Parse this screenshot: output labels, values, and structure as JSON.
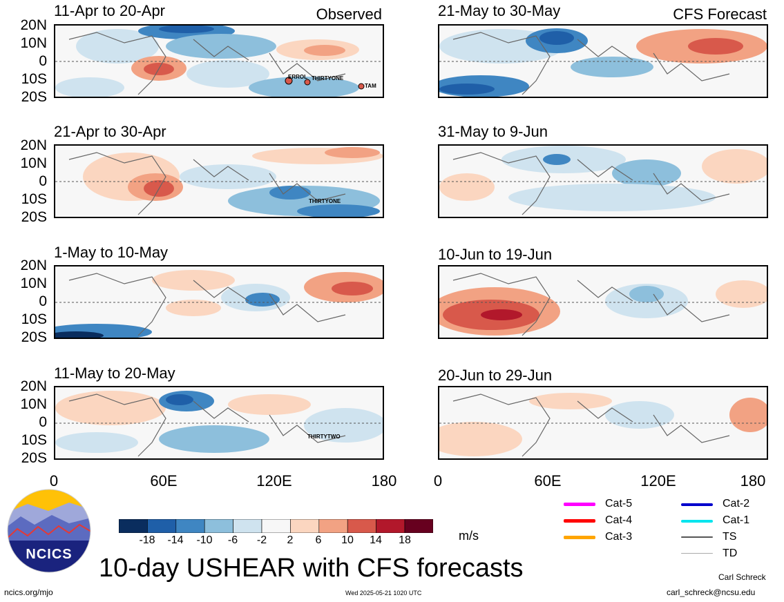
{
  "header": {
    "observed_label": "Observed",
    "forecast_label": "CFS Forecast"
  },
  "axes": {
    "lat_labels": [
      "20N",
      "10N",
      "0",
      "10S",
      "20S"
    ],
    "lon_labels": [
      "0",
      "60E",
      "120E",
      "180"
    ]
  },
  "panels": [
    {
      "title": "11-Apr to 20-Apr",
      "kind": "observed"
    },
    {
      "title": "21-Apr to 30-Apr",
      "kind": "observed"
    },
    {
      "title": "1-May to 10-May",
      "kind": "observed"
    },
    {
      "title": "11-May to 20-May",
      "kind": "observed"
    },
    {
      "title": "21-May to 30-May",
      "kind": "forecast"
    },
    {
      "title": "31-May to 9-Jun",
      "kind": "forecast"
    },
    {
      "title": "10-Jun to 19-Jun",
      "kind": "forecast"
    },
    {
      "title": "20-Jun to 29-Jun",
      "kind": "forecast"
    }
  ],
  "storms": {
    "errol": "ERROL",
    "thirtyone": "THIRTYONE",
    "tam": "TAM",
    "thirtyone_b": "THIRTYONE",
    "thirtytwo": "THIRTYTWO"
  },
  "colorbar": {
    "ticks": [
      "-18",
      "-14",
      "-10",
      "-6",
      "-2",
      "2",
      "6",
      "10",
      "14",
      "18"
    ],
    "unit": "m/s",
    "colors": [
      "#0a2d5e",
      "#1f5fa8",
      "#3f86c2",
      "#8dbfdc",
      "#cfe3ef",
      "#f7f7f7",
      "#fbd6c0",
      "#f2a283",
      "#d8594b",
      "#b2182b",
      "#67001f"
    ]
  },
  "legend": {
    "cat5": "Cat-5",
    "cat4": "Cat-4",
    "cat3": "Cat-3",
    "cat2": "Cat-2",
    "cat1": "Cat-1",
    "ts": "TS",
    "td": "TD",
    "colors": {
      "cat5": "#ff00ff",
      "cat4": "#ff0000",
      "cat3": "#ffa500",
      "cat2": "#0000cc",
      "cat1": "#00e5ee",
      "ts": "#555555",
      "td": "#aaaaaa"
    }
  },
  "logo": {
    "text": "NCICS"
  },
  "title": "10-day USHEAR with CFS forecasts",
  "footer": {
    "url": "ncics.org/mjo",
    "timestamp": "Wed 2025-05-21 1020 UTC",
    "author": "Carl Schreck",
    "email": "carl_schreck@ncsu.edu"
  }
}
